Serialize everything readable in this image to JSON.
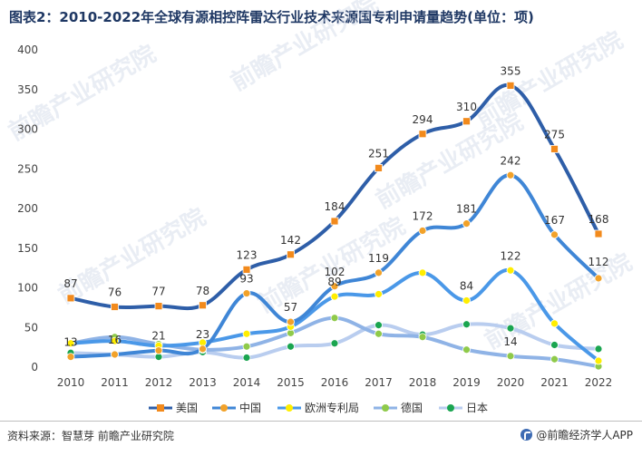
{
  "title": "图表2：2010-2022年全球有源相控阵雷达行业技术来源国专利申请量趋势(单位：项)",
  "footer": {
    "source": "资料来源：智慧芽 前瞻产业研究院",
    "brand": "@前瞻经济学人APP"
  },
  "watermark": {
    "text": "前瞻产业研究院"
  },
  "chart_data": {
    "type": "line",
    "smooth": true,
    "categories": [
      "2010",
      "2011",
      "2012",
      "2013",
      "2014",
      "2015",
      "2016",
      "2017",
      "2018",
      "2019",
      "2020",
      "2021",
      "2022"
    ],
    "ylim": [
      0,
      400
    ],
    "yticks": [
      0,
      50,
      100,
      150,
      200,
      250,
      300,
      350,
      400
    ],
    "grid": false,
    "legend_position": "bottom",
    "series": [
      {
        "name": "美国",
        "color": "#2e5ea8",
        "marker": "square",
        "markerColor": "#f28a1c",
        "values": [
          87,
          76,
          77,
          78,
          123,
          142,
          184,
          251,
          294,
          310,
          355,
          275,
          168
        ],
        "labels": [
          "87",
          "76",
          "77",
          "78",
          "123",
          "142",
          "184",
          "251",
          "294",
          "310",
          "355",
          "275",
          "168"
        ]
      },
      {
        "name": "中国",
        "color": "#3f86d6",
        "marker": "circle",
        "markerColor": "#f2a22a",
        "values": [
          13,
          16,
          21,
          23,
          93,
          57,
          102,
          119,
          172,
          181,
          242,
          167,
          112
        ],
        "labels": [
          "13",
          "16",
          "21",
          "23",
          "93",
          "57",
          "102",
          "119",
          "172",
          "181",
          "242",
          "167",
          "112"
        ]
      },
      {
        "name": "欧洲专利局",
        "color": "#4a98e8",
        "marker": "circle",
        "markerColor": "#ffee00",
        "values": [
          30,
          33,
          27,
          31,
          42,
          51,
          89,
          92,
          119,
          84,
          122,
          55,
          8
        ],
        "labels": [
          "",
          "",
          "",
          "",
          "",
          "",
          "89",
          "",
          "",
          "84",
          "122",
          "",
          ""
        ]
      },
      {
        "name": "德国",
        "color": "#8fb3e6",
        "marker": "circle",
        "markerColor": "#8fca4a",
        "values": [
          30,
          38,
          29,
          22,
          26,
          43,
          62,
          42,
          38,
          22,
          14,
          10,
          1
        ],
        "labels": [
          "",
          "",
          "",
          "",
          "",
          "",
          "",
          "",
          "",
          "",
          "14",
          "",
          ""
        ]
      },
      {
        "name": "日本",
        "color": "#b9cdef",
        "marker": "circle",
        "markerColor": "#1aa550",
        "values": [
          18,
          16,
          13,
          19,
          12,
          26,
          30,
          53,
          41,
          54,
          49,
          28,
          23
        ],
        "labels": [
          "",
          "",
          "",
          "",
          "",
          "",
          "",
          "",
          "",
          "",
          "",
          "",
          ""
        ]
      }
    ]
  }
}
